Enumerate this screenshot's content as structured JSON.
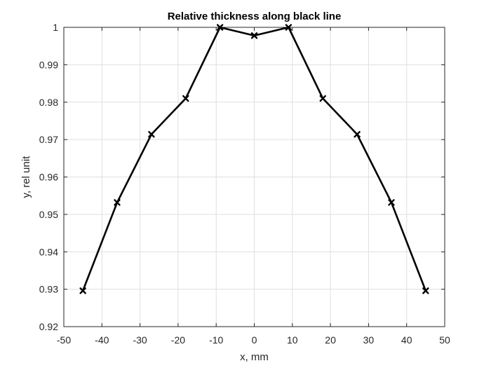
{
  "chart_data": {
    "type": "line",
    "title": "Relative thickness along black line",
    "xlabel": "x, mm",
    "ylabel": "y, rel unit",
    "xlim": [
      -50,
      50
    ],
    "ylim": [
      0.92,
      1.0
    ],
    "xticks": [
      -50,
      -40,
      -30,
      -20,
      -10,
      0,
      10,
      20,
      30,
      40,
      50
    ],
    "yticks": [
      0.92,
      0.93,
      0.94,
      0.95,
      0.96,
      0.97,
      0.98,
      0.99,
      1.0
    ],
    "xtick_labels": [
      "-50",
      "-40",
      "-30",
      "-20",
      "-10",
      "0",
      "10",
      "20",
      "30",
      "40",
      "50"
    ],
    "ytick_labels": [
      "0.92",
      "0.93",
      "0.94",
      "0.95",
      "0.96",
      "0.97",
      "0.98",
      "0.99",
      "1"
    ],
    "grid": true,
    "box": true,
    "series": [
      {
        "color": "#000000",
        "marker": "x",
        "x": [
          -45,
          -36,
          -27,
          -18,
          -9,
          0,
          9,
          18,
          27,
          36,
          45
        ],
        "y": [
          0.9296,
          0.9532,
          0.9714,
          0.981,
          1.0,
          0.9978,
          1.0,
          0.981,
          0.9714,
          0.9532,
          0.9296
        ]
      }
    ]
  }
}
